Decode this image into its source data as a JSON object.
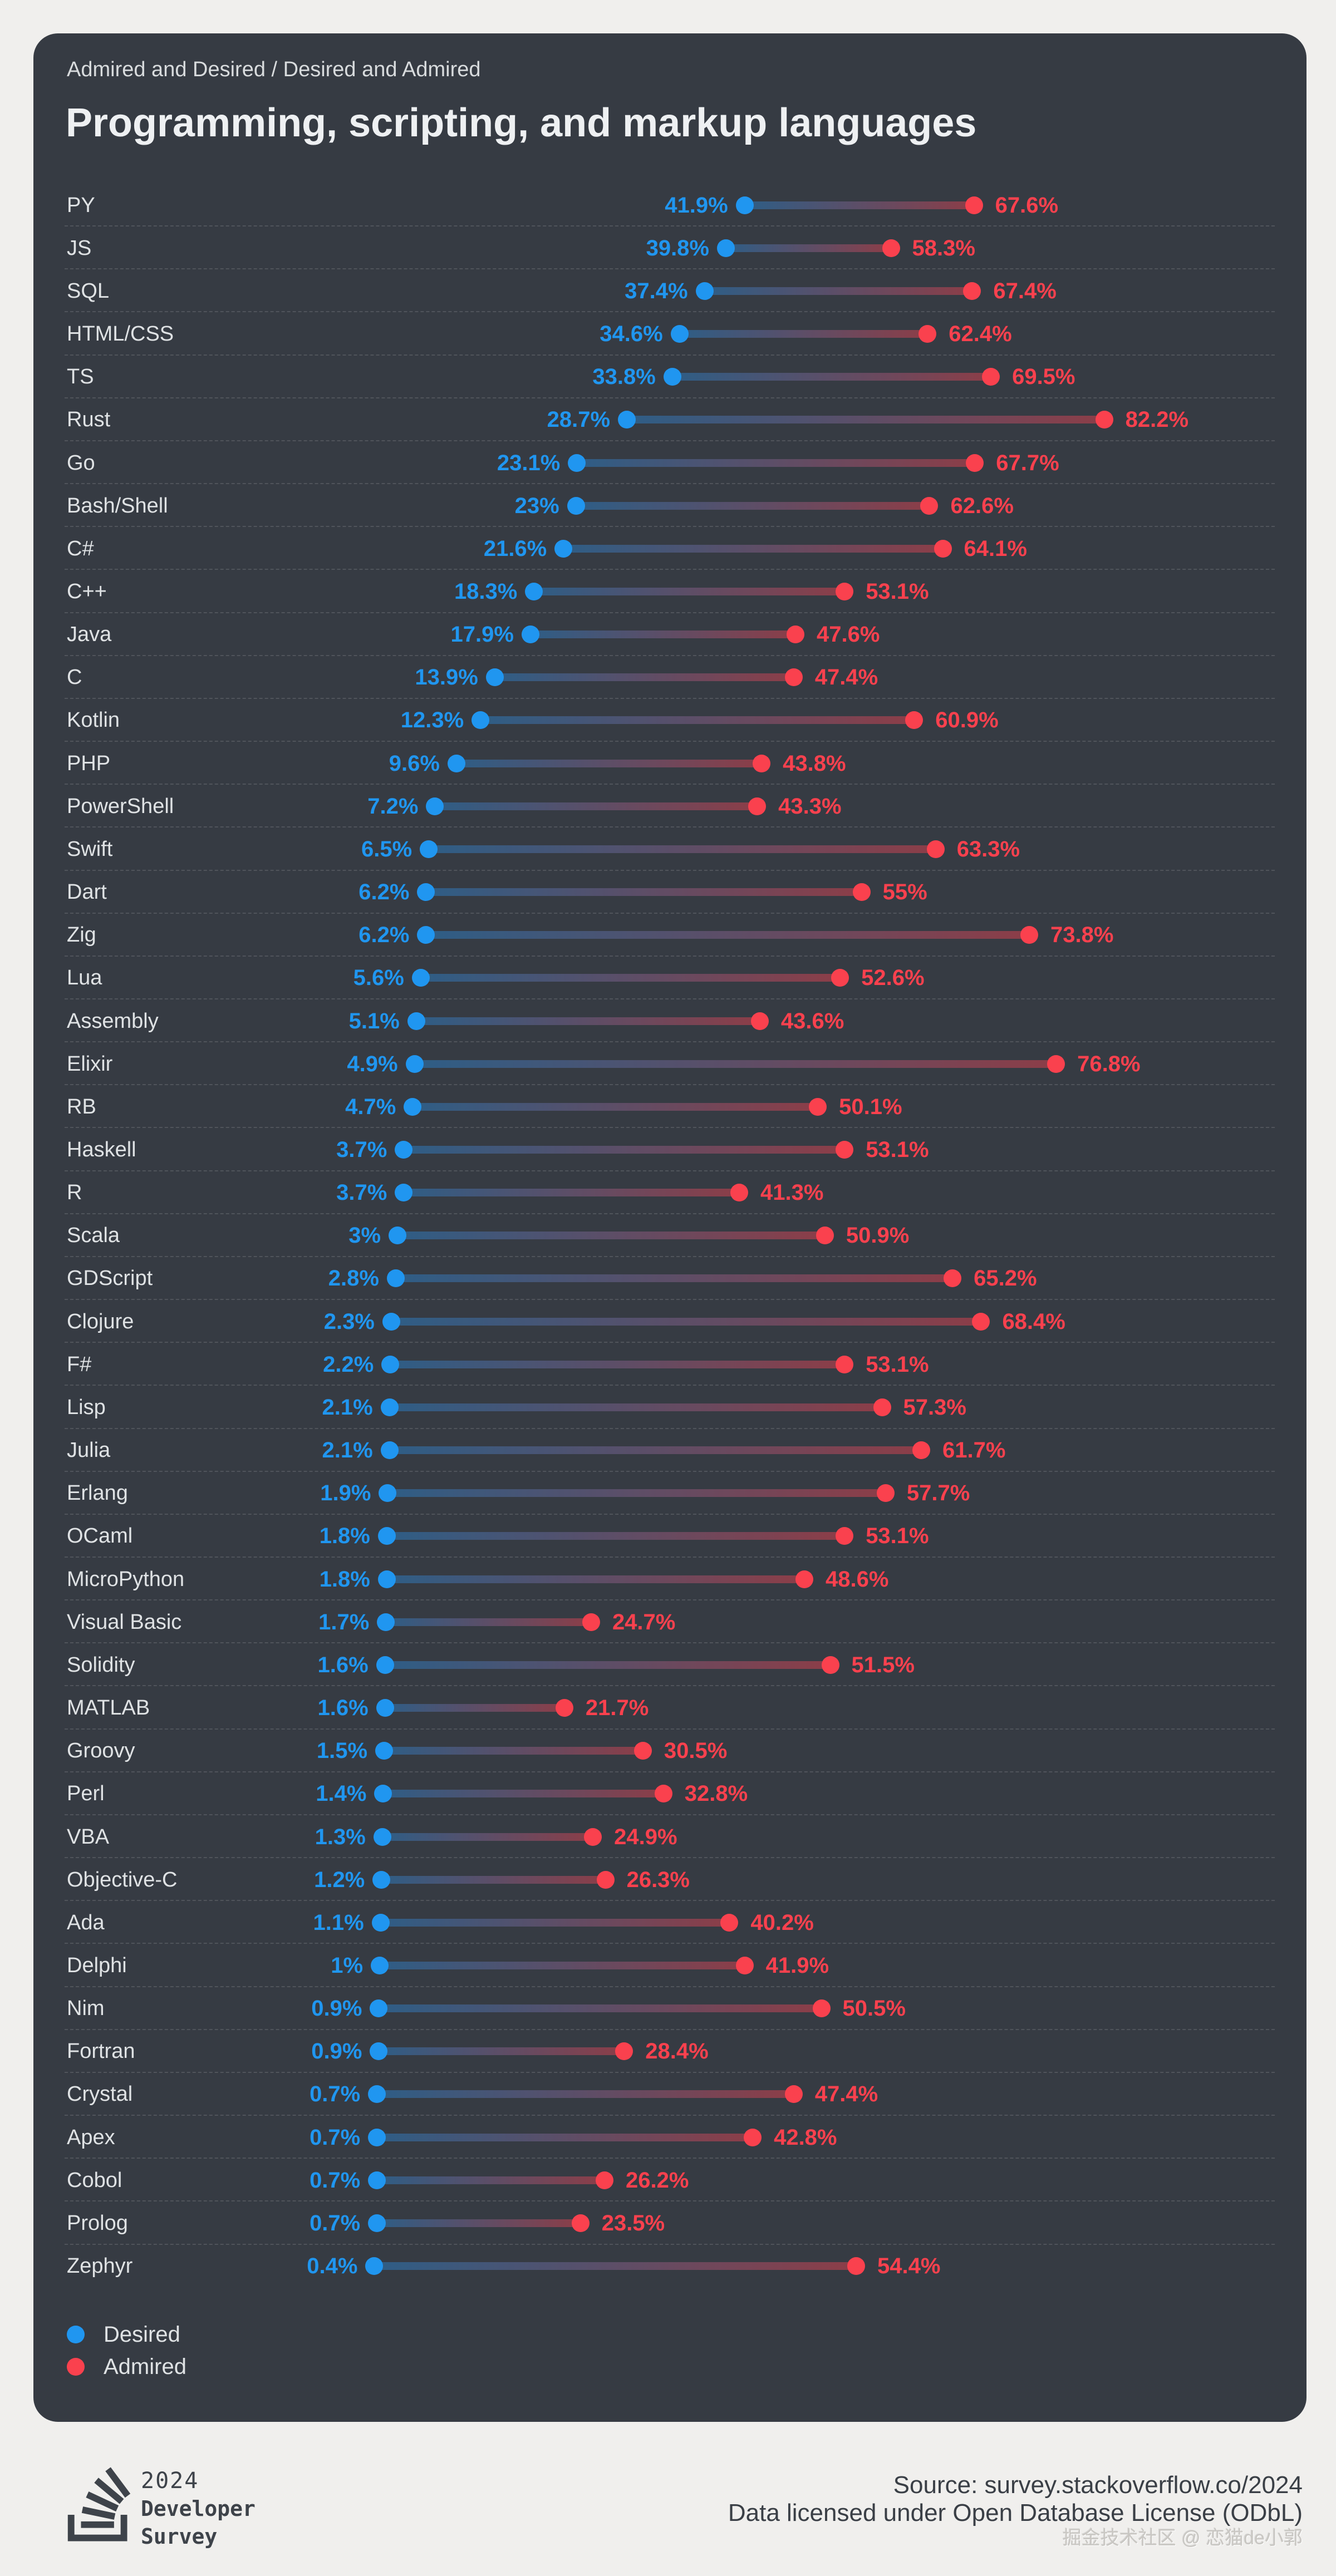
{
  "card": {
    "subtitle": "Admired and Desired / Desired and Admired",
    "title": "Programming, scripting, and markup languages"
  },
  "legend": [
    {
      "label": "Desired",
      "color": "#2096f0"
    },
    {
      "label": "Admired",
      "color": "#fa414e"
    }
  ],
  "chart_data": {
    "type": "dumbbell",
    "title": "Programming, scripting, and markup languages",
    "subtitle": "Admired and Desired / Desired and Admired",
    "xlim": [
      0,
      100
    ],
    "grid": false,
    "legend_position": "bottom-left",
    "categories": [
      "PY",
      "JS",
      "SQL",
      "HTML/CSS",
      "TS",
      "Rust",
      "Go",
      "Bash/Shell",
      "C#",
      "C++",
      "Java",
      "C",
      "Kotlin",
      "PHP",
      "PowerShell",
      "Swift",
      "Dart",
      "Zig",
      "Lua",
      "Assembly",
      "Elixir",
      "RB",
      "Haskell",
      "R",
      "Scala",
      "GDScript",
      "Clojure",
      "F#",
      "Lisp",
      "Julia",
      "Erlang",
      "OCaml",
      "MicroPython",
      "Visual Basic",
      "Solidity",
      "MATLAB",
      "Groovy",
      "Perl",
      "VBA",
      "Objective-C",
      "Ada",
      "Delphi",
      "Nim",
      "Fortran",
      "Crystal",
      "Apex",
      "Cobol",
      "Prolog",
      "Zephyr"
    ],
    "series": [
      {
        "name": "Desired",
        "color": "#2096f0",
        "values": [
          41.9,
          39.8,
          37.4,
          34.6,
          33.8,
          28.7,
          23.1,
          23,
          21.6,
          18.3,
          17.9,
          13.9,
          12.3,
          9.6,
          7.2,
          6.5,
          6.2,
          6.2,
          5.6,
          5.1,
          4.9,
          4.7,
          3.7,
          3.7,
          3,
          2.8,
          2.3,
          2.2,
          2.1,
          2.1,
          1.9,
          1.8,
          1.8,
          1.7,
          1.6,
          1.6,
          1.5,
          1.4,
          1.3,
          1.2,
          1.1,
          1,
          0.9,
          0.9,
          0.7,
          0.7,
          0.7,
          0.7,
          0.4
        ],
        "labels": [
          "41.9%",
          "39.8%",
          "37.4%",
          "34.6%",
          "33.8%",
          "28.7%",
          "23.1%",
          "23%",
          "21.6%",
          "18.3%",
          "17.9%",
          "13.9%",
          "12.3%",
          "9.6%",
          "7.2%",
          "6.5%",
          "6.2%",
          "6.2%",
          "5.6%",
          "5.1%",
          "4.9%",
          "4.7%",
          "3.7%",
          "3.7%",
          "3%",
          "2.8%",
          "2.3%",
          "2.2%",
          "2.1%",
          "2.1%",
          "1.9%",
          "1.8%",
          "1.8%",
          "1.7%",
          "1.6%",
          "1.6%",
          "1.5%",
          "1.4%",
          "1.3%",
          "1.2%",
          "1.1%",
          "1%",
          "0.9%",
          "0.9%",
          "0.7%",
          "0.7%",
          "0.7%",
          "0.7%",
          "0.4%"
        ]
      },
      {
        "name": "Admired",
        "color": "#fa414e",
        "values": [
          67.6,
          58.3,
          67.4,
          62.4,
          69.5,
          82.2,
          67.7,
          62.6,
          64.1,
          53.1,
          47.6,
          47.4,
          60.9,
          43.8,
          43.3,
          63.3,
          55,
          73.8,
          52.6,
          43.6,
          76.8,
          50.1,
          53.1,
          41.3,
          50.9,
          65.2,
          68.4,
          53.1,
          57.3,
          61.7,
          57.7,
          53.1,
          48.6,
          24.7,
          51.5,
          21.7,
          30.5,
          32.8,
          24.9,
          26.3,
          40.2,
          41.9,
          50.5,
          28.4,
          47.4,
          42.8,
          26.2,
          23.5,
          54.4
        ],
        "labels": [
          "67.6%",
          "58.3%",
          "67.4%",
          "62.4%",
          "69.5%",
          "82.2%",
          "67.7%",
          "62.6%",
          "64.1%",
          "53.1%",
          "47.6%",
          "47.4%",
          "60.9%",
          "43.8%",
          "43.3%",
          "63.3%",
          "55%",
          "73.8%",
          "52.6%",
          "43.6%",
          "76.8%",
          "50.1%",
          "53.1%",
          "41.3%",
          "50.9%",
          "65.2%",
          "68.4%",
          "53.1%",
          "57.3%",
          "61.7%",
          "57.7%",
          "53.1%",
          "48.6%",
          "24.7%",
          "51.5%",
          "21.7%",
          "30.5%",
          "32.8%",
          "24.9%",
          "26.3%",
          "40.2%",
          "41.9%",
          "50.5%",
          "28.4%",
          "47.4%",
          "42.8%",
          "26.2%",
          "23.5%",
          "54.4%"
        ]
      }
    ]
  },
  "footer": {
    "logo_year": "2024",
    "logo_line1": "Developer",
    "logo_line2": "Survey",
    "source": "Source: survey.stackoverflow.co/2024",
    "license": "Data licensed under Open Database License (ODbL)",
    "watermark": "掘金技术社区 @ 恋猫de小郭"
  },
  "colors": {
    "page_background": "#f0efed",
    "card_background": "#363b43",
    "desired": "#2096f0",
    "admired": "#fa414e",
    "text_light": "#dfe2e4",
    "footer_text": "#3a3f46"
  }
}
